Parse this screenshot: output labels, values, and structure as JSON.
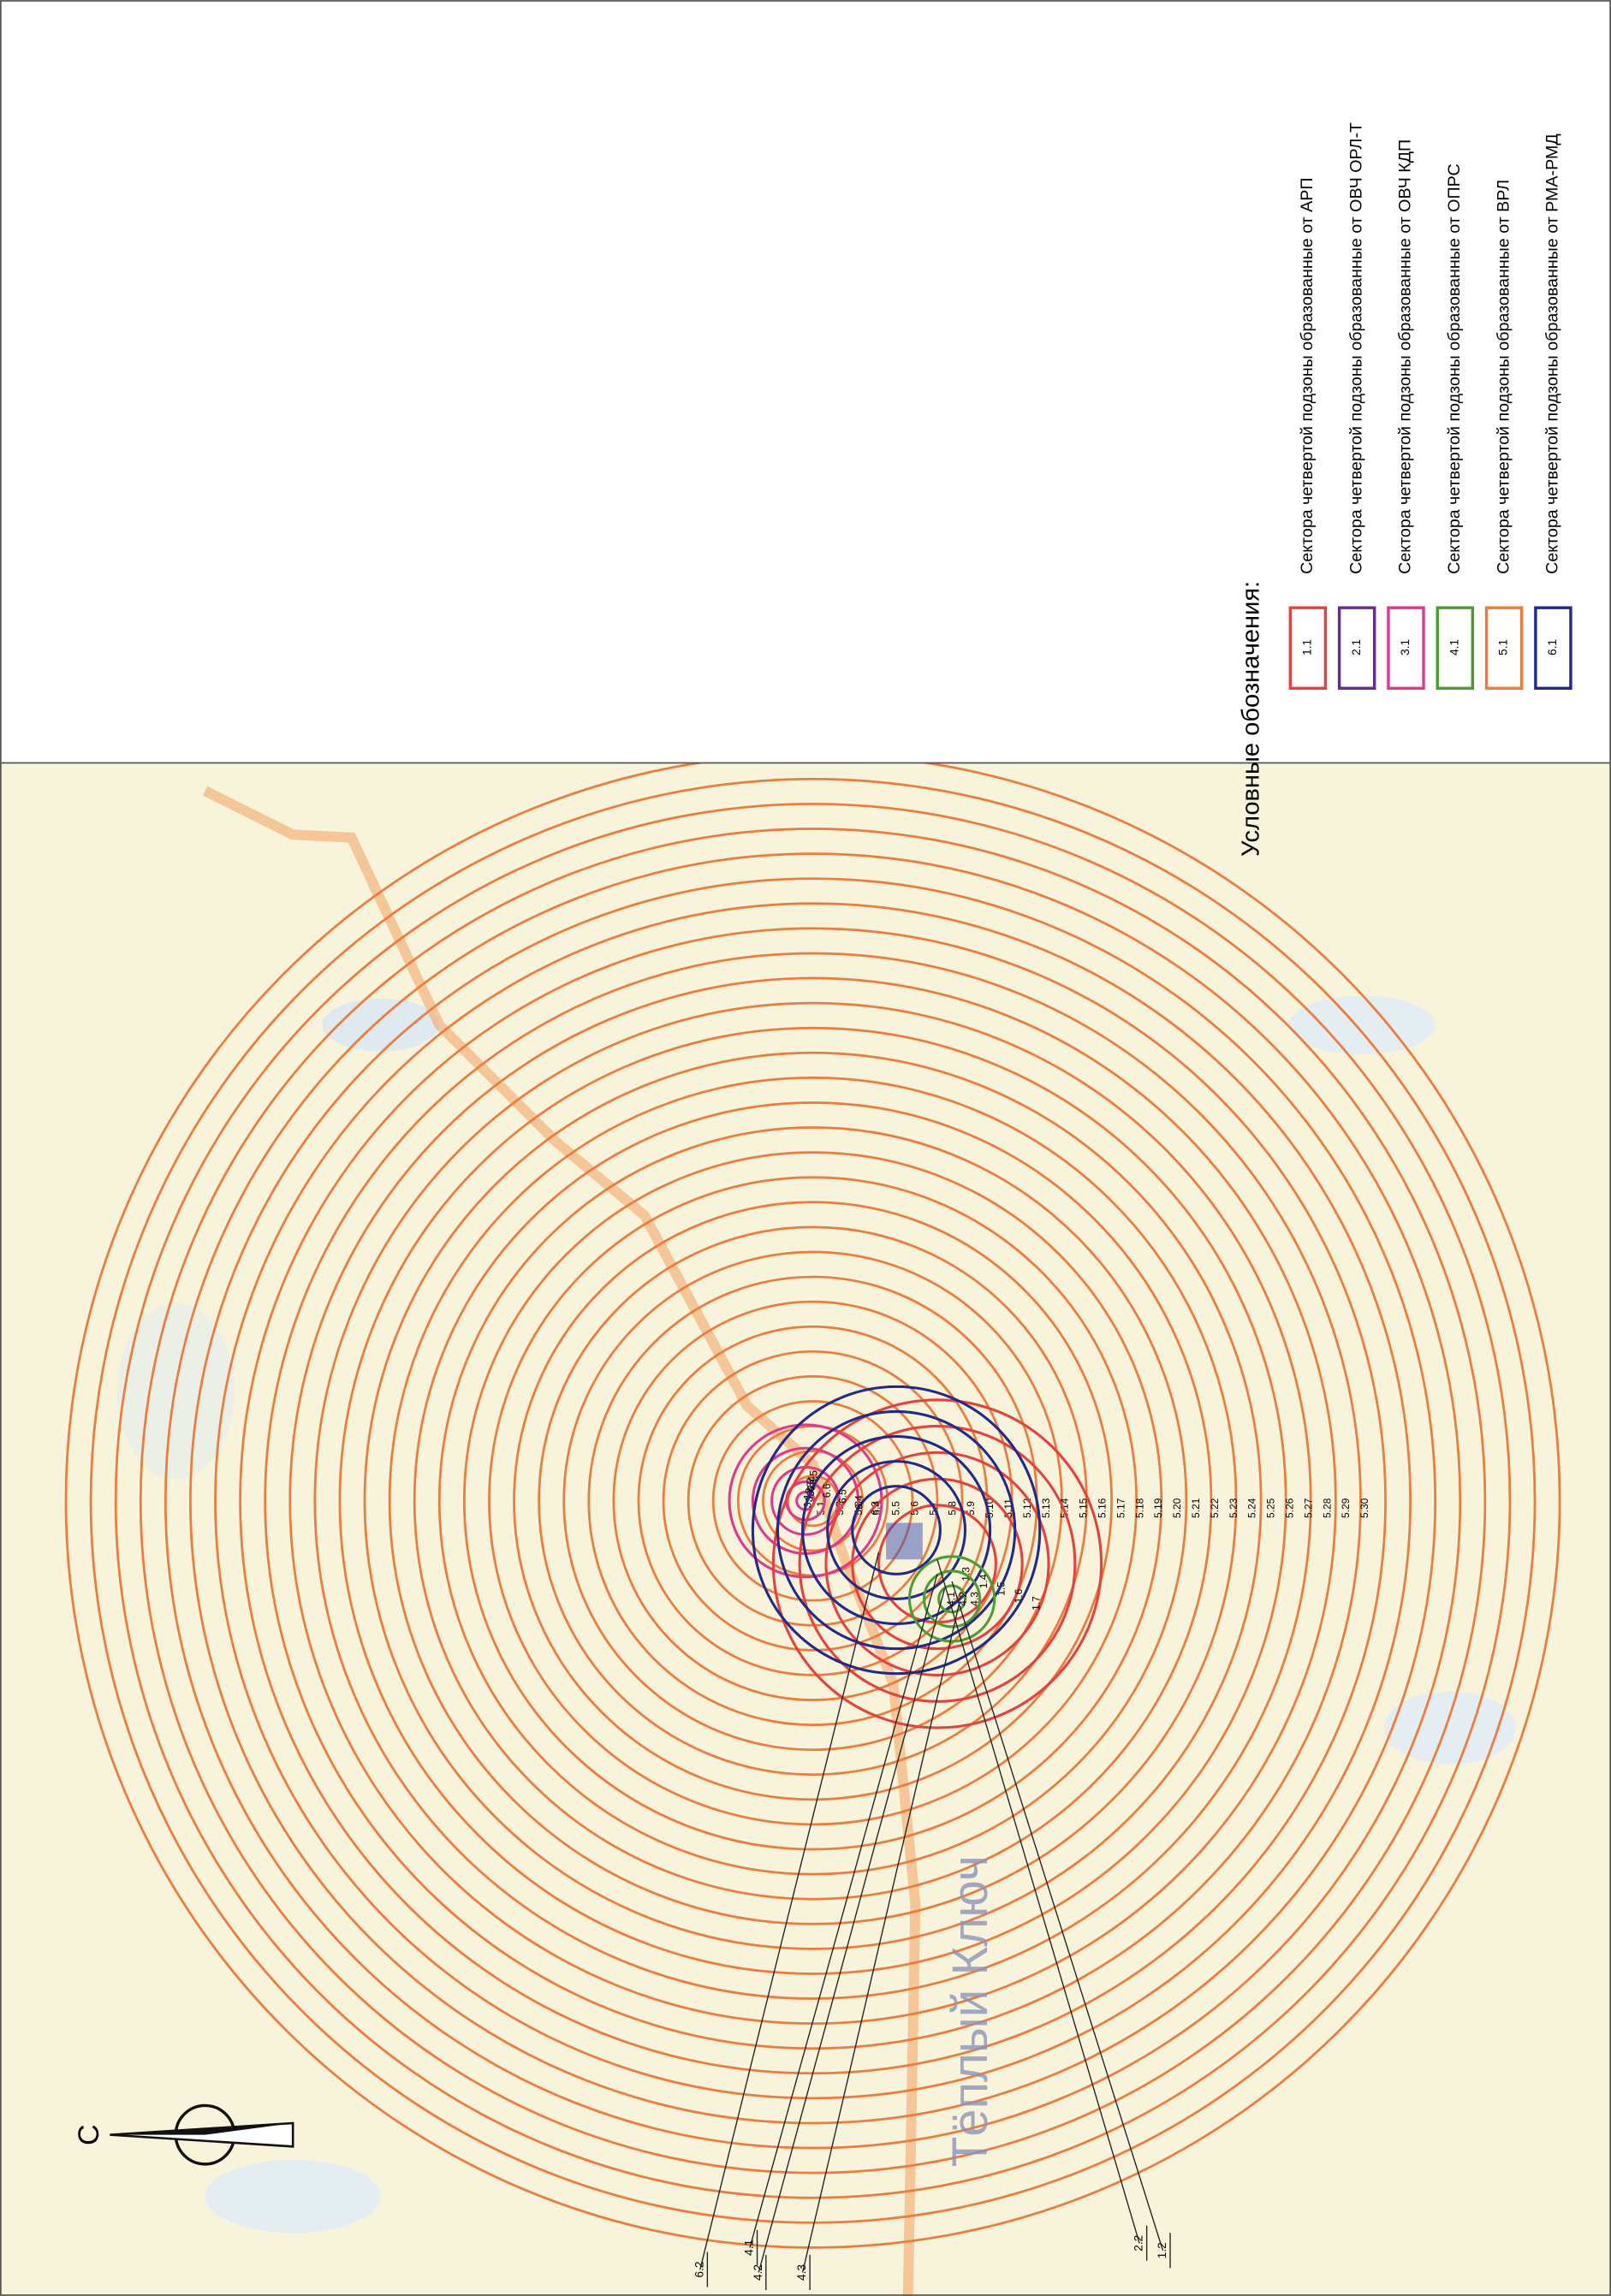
{
  "legend": {
    "title": "Условные обозначения:",
    "items": [
      {
        "code": "1.1",
        "text": "Сектора четвертой подзоны образованные от АРП",
        "color": "#e8413c"
      },
      {
        "code": "2.1",
        "text": "Сектора четвертой подзоны образованные от ОВЧ ОРЛ-Т",
        "color": "#6a2c8f"
      },
      {
        "code": "3.1",
        "text": "Сектора четвертой подзоны образованные от ОВЧ КДП",
        "color": "#e0388f"
      },
      {
        "code": "4.1",
        "text": "Сектора четвертой подзоны образованные от ОПРС",
        "color": "#4a9e2f"
      },
      {
        "code": "5.1",
        "text": "Сектора четвертой подзоны образованные от ВРЛ",
        "color": "#f07a3a"
      },
      {
        "code": "6.1",
        "text": "Сектора четвертой подзоны образованные от РМА-РМД",
        "color": "#1f2a8c"
      }
    ]
  },
  "map": {
    "place": "Тёплый Ключ",
    "north": "С",
    "ring_groups": [
      {
        "color": "#f07a3a",
        "labels": [
          "5.1",
          "5.2",
          "5.3",
          "5.4",
          "5.5",
          "5.6",
          "5.7",
          "5.8",
          "5.9",
          "5.10",
          "5.11",
          "5.12",
          "5.13",
          "5.14",
          "5.15",
          "5.16",
          "5.17",
          "5.18",
          "5.19",
          "5.20",
          "5.21",
          "5.22",
          "5.23",
          "5.24",
          "5.25",
          "5.26",
          "5.27",
          "5.28",
          "5.29",
          "5.30"
        ]
      },
      {
        "color": "#e0388f",
        "labels": [
          "3.1",
          "3.2",
          "3.3",
          "3.4",
          "3.5"
        ]
      },
      {
        "color": "#e8413c",
        "labels": [
          "1.3",
          "1.4",
          "1.5",
          "1.6",
          "1.7"
        ]
      },
      {
        "color": "#1f2a8c",
        "labels": [
          "6.3",
          "6.4",
          "6.5",
          "6.6",
          "6.7"
        ]
      },
      {
        "color": "#4a9e2f",
        "labels": [
          "4.1",
          "4.2",
          "4.3"
        ]
      }
    ],
    "callouts": [
      "6.2",
      "4.1",
      "4.2",
      "4.3",
      "2.2",
      "1.2"
    ]
  }
}
